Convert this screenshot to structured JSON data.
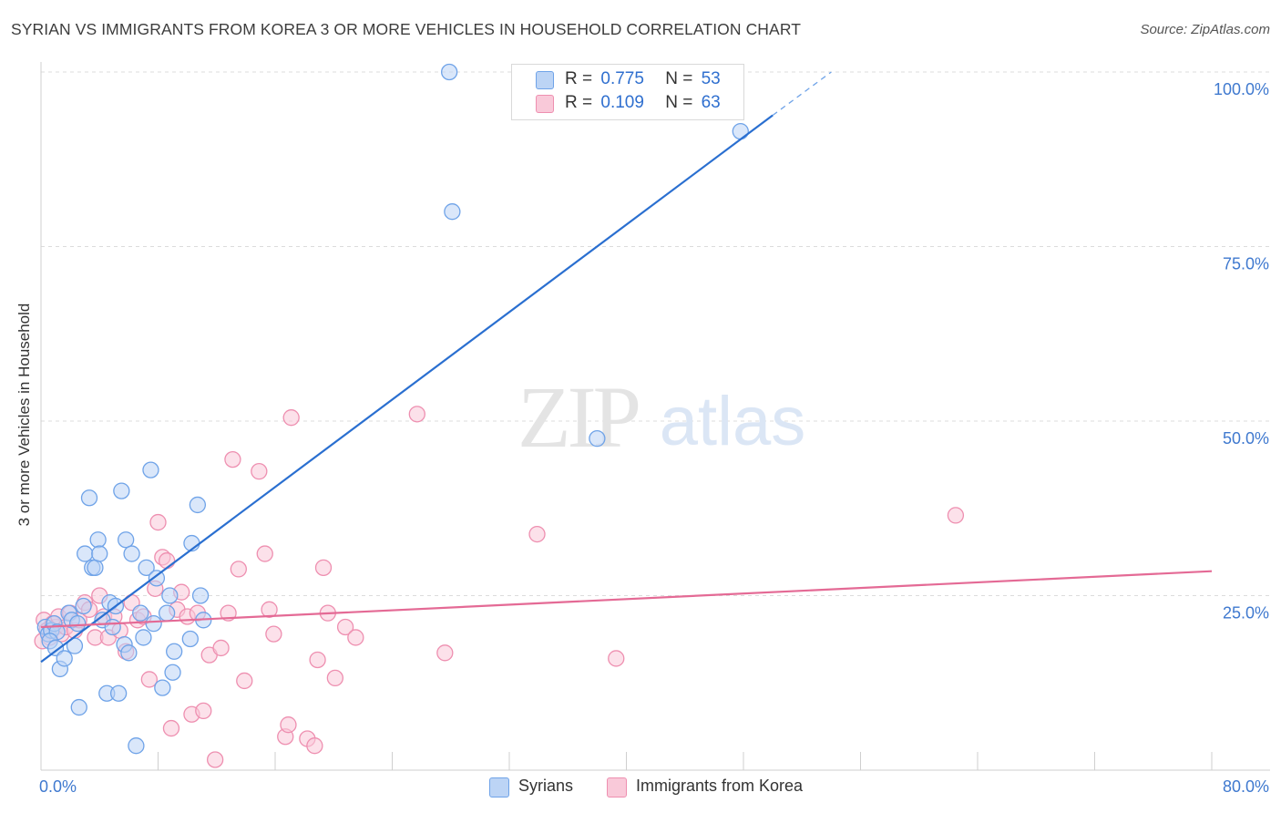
{
  "title": "SYRIAN VS IMMIGRANTS FROM KOREA 3 OR MORE VEHICLES IN HOUSEHOLD CORRELATION CHART",
  "source": "Source: ZipAtlas.com",
  "watermark": {
    "zip": "ZIP",
    "atlas": "atlas"
  },
  "legend_top": [
    {
      "r_label": "R =",
      "r_value": "0.775",
      "n_label": "N =",
      "n_value": "53",
      "color": "#6fa3e8",
      "fill": "#bcd4f5"
    },
    {
      "r_label": "R =",
      "r_value": "0.109",
      "n_label": "N =",
      "n_value": "63",
      "color": "#ee8fb0",
      "fill": "#f9c9d9"
    }
  ],
  "chart_data": {
    "type": "scatter",
    "title": "SYRIAN VS IMMIGRANTS FROM KOREA 3 OR MORE VEHICLES IN HOUSEHOLD CORRELATION CHART",
    "xlabel": "",
    "ylabel": "3 or more Vehicles in Household",
    "xlim": [
      0,
      80
    ],
    "ylim": [
      0,
      102
    ],
    "x_tick_labels": [
      "0.0%",
      "80.0%"
    ],
    "y_ticks": [
      25,
      50,
      75,
      100
    ],
    "y_tick_labels": [
      "25.0%",
      "50.0%",
      "75.0%",
      "100.0%"
    ],
    "grid": true,
    "series": [
      {
        "name": "Syrians",
        "color": "#6fa3e8",
        "fill": "#bcd4f5",
        "trend": {
          "x0": 0,
          "y0": 15.5,
          "x1": 50,
          "y1": 93.8,
          "dash_to_x": 54,
          "dash_to_y": 100
        },
        "points": [
          [
            0.3,
            20.5
          ],
          [
            0.5,
            19.5
          ],
          [
            0.7,
            20.0
          ],
          [
            0.9,
            21.0
          ],
          [
            1.1,
            19.8
          ],
          [
            0.6,
            18.5
          ],
          [
            1.0,
            17.5
          ],
          [
            1.3,
            14.5
          ],
          [
            1.6,
            16.0
          ],
          [
            1.9,
            22.5
          ],
          [
            2.1,
            21.5
          ],
          [
            2.3,
            17.8
          ],
          [
            2.6,
            9.0
          ],
          [
            2.9,
            23.5
          ],
          [
            3.0,
            31.0
          ],
          [
            3.3,
            39.0
          ],
          [
            3.5,
            29.0
          ],
          [
            3.7,
            29.0
          ],
          [
            3.9,
            33.0
          ],
          [
            4.0,
            31.0
          ],
          [
            4.2,
            21.5
          ],
          [
            4.5,
            11.0
          ],
          [
            4.7,
            24.0
          ],
          [
            4.9,
            20.5
          ],
          [
            5.1,
            23.5
          ],
          [
            5.3,
            11.0
          ],
          [
            5.5,
            40.0
          ],
          [
            5.7,
            18.0
          ],
          [
            5.8,
            33.0
          ],
          [
            6.0,
            16.8
          ],
          [
            6.2,
            31.0
          ],
          [
            6.5,
            3.5
          ],
          [
            6.8,
            22.5
          ],
          [
            7.0,
            19.0
          ],
          [
            7.2,
            29.0
          ],
          [
            7.5,
            43.0
          ],
          [
            7.7,
            21.0
          ],
          [
            7.9,
            27.5
          ],
          [
            8.3,
            11.8
          ],
          [
            8.6,
            22.5
          ],
          [
            8.8,
            25.0
          ],
          [
            9.0,
            14.0
          ],
          [
            9.1,
            17.0
          ],
          [
            10.3,
            32.5
          ],
          [
            10.2,
            18.8
          ],
          [
            10.7,
            38.0
          ],
          [
            10.9,
            25.0
          ],
          [
            11.1,
            21.5
          ],
          [
            27.9,
            100.0
          ],
          [
            28.1,
            80.0
          ],
          [
            38.0,
            47.5
          ],
          [
            47.8,
            91.5
          ],
          [
            2.5,
            21.0
          ]
        ]
      },
      {
        "name": "Immigrants from Korea",
        "color": "#ee8fb0",
        "fill": "#f9c9d9",
        "trend": {
          "x0": 0,
          "y0": 20.5,
          "x1": 80,
          "y1": 28.5
        },
        "points": [
          [
            0.2,
            21.5
          ],
          [
            0.4,
            20.0
          ],
          [
            0.6,
            19.0
          ],
          [
            0.8,
            21.0
          ],
          [
            1.0,
            20.5
          ],
          [
            1.2,
            22.0
          ],
          [
            1.4,
            19.5
          ],
          [
            1.7,
            20.5
          ],
          [
            2.0,
            22.5
          ],
          [
            2.3,
            20.0
          ],
          [
            2.6,
            21.5
          ],
          [
            3.0,
            24.0
          ],
          [
            3.3,
            23.0
          ],
          [
            3.7,
            19.0
          ],
          [
            4.0,
            25.0
          ],
          [
            4.3,
            22.0
          ],
          [
            4.6,
            19.0
          ],
          [
            5.0,
            22.0
          ],
          [
            5.4,
            20.0
          ],
          [
            5.8,
            17.0
          ],
          [
            6.2,
            24.0
          ],
          [
            6.6,
            21.5
          ],
          [
            7.0,
            22.0
          ],
          [
            7.4,
            13.0
          ],
          [
            7.8,
            26.0
          ],
          [
            8.0,
            35.5
          ],
          [
            8.3,
            30.5
          ],
          [
            8.6,
            30.0
          ],
          [
            8.9,
            6.0
          ],
          [
            9.3,
            23.0
          ],
          [
            9.6,
            25.5
          ],
          [
            10.0,
            22.0
          ],
          [
            10.3,
            8.0
          ],
          [
            10.7,
            22.5
          ],
          [
            11.1,
            8.5
          ],
          [
            11.5,
            16.5
          ],
          [
            11.9,
            1.5
          ],
          [
            12.3,
            17.5
          ],
          [
            12.8,
            22.5
          ],
          [
            13.1,
            44.5
          ],
          [
            13.5,
            28.8
          ],
          [
            13.9,
            12.8
          ],
          [
            14.9,
            42.8
          ],
          [
            15.3,
            31.0
          ],
          [
            15.6,
            23.0
          ],
          [
            15.9,
            19.5
          ],
          [
            16.7,
            4.8
          ],
          [
            16.9,
            6.5
          ],
          [
            17.1,
            50.5
          ],
          [
            18.2,
            4.5
          ],
          [
            18.7,
            3.5
          ],
          [
            18.9,
            15.8
          ],
          [
            19.3,
            29.0
          ],
          [
            19.6,
            22.5
          ],
          [
            20.1,
            13.2
          ],
          [
            20.8,
            20.5
          ],
          [
            21.5,
            19.0
          ],
          [
            25.7,
            51.0
          ],
          [
            27.6,
            16.8
          ],
          [
            33.9,
            33.8
          ],
          [
            39.3,
            16.0
          ],
          [
            62.5,
            36.5
          ],
          [
            0.1,
            18.5
          ]
        ]
      }
    ]
  },
  "legend_bottom": [
    {
      "label": "Syrians",
      "color": "#6fa3e8",
      "fill": "#bcd4f5"
    },
    {
      "label": "Immigrants from Korea",
      "color": "#ee8fb0",
      "fill": "#f9c9d9"
    }
  ]
}
